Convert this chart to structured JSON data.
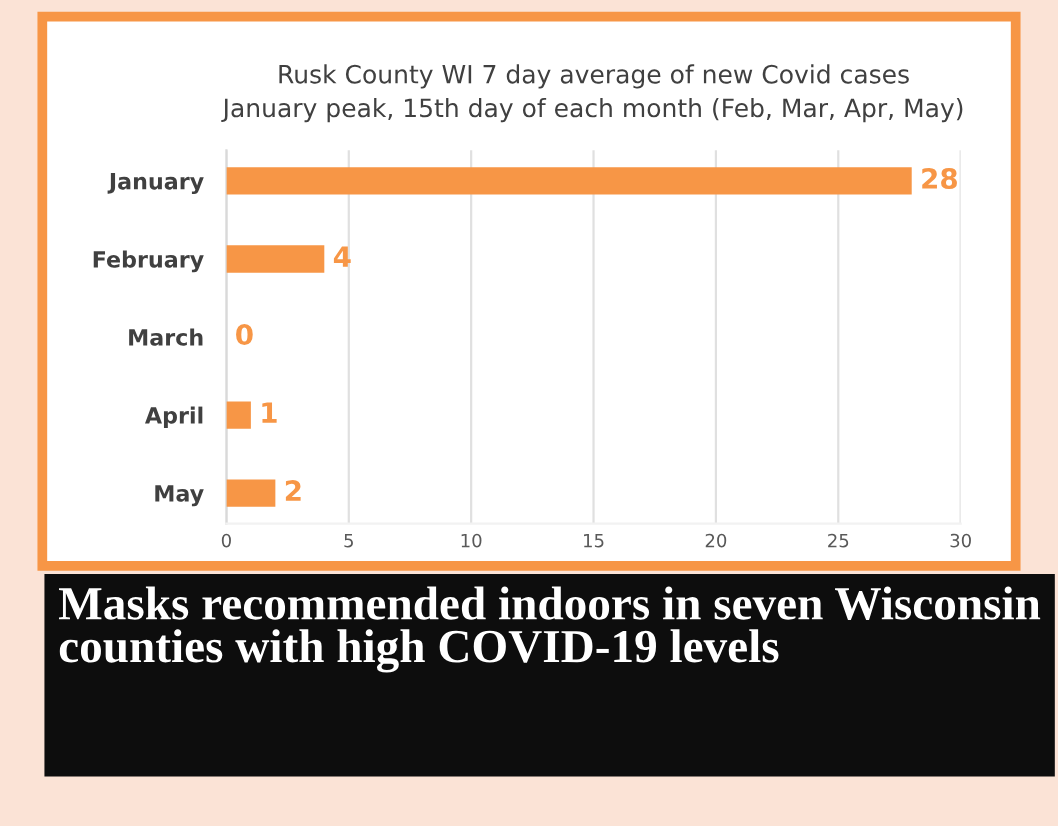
{
  "chart_data": {
    "type": "bar",
    "orientation": "horizontal",
    "title": "Rusk County WI 7 day average of new Covid cases\nJanuary peak, 15th day of each month (Feb, Mar, Apr, May)",
    "categories": [
      "January",
      "February",
      "March",
      "April",
      "May"
    ],
    "values": [
      28,
      4,
      0,
      1,
      2
    ],
    "color": "#f79646",
    "data_labels": true,
    "xlim": [
      0,
      30
    ],
    "xticks": [
      0,
      5,
      10,
      15,
      20,
      25,
      30
    ],
    "grid": "x",
    "annotations": [
      "Masks recommended indoors in seven Wisconsin counties with high COVID-19 levels"
    ]
  }
}
